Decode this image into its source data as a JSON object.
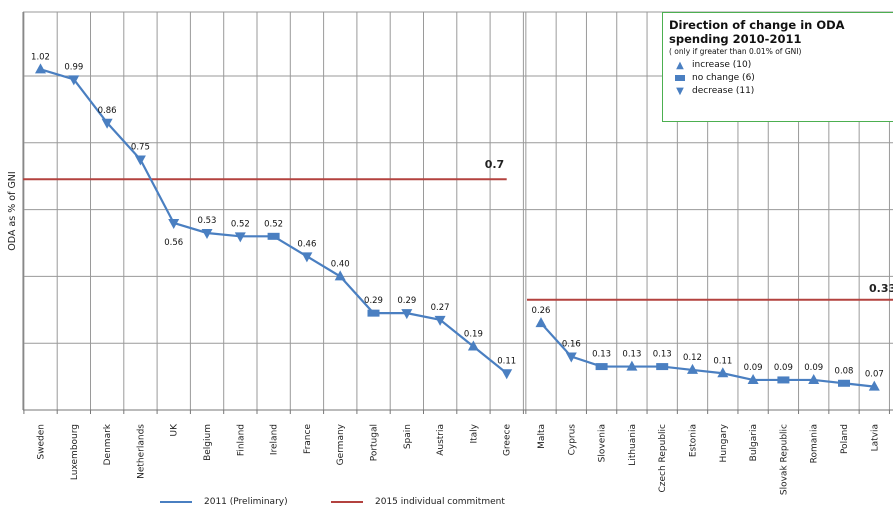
{
  "chart_data": {
    "type": "line",
    "ylabel": "ODA as % of GNI",
    "ylim": [
      0,
      1.1
    ],
    "grid": true,
    "series": [
      {
        "name": "2011 (Preliminary)",
        "color": "#4a7fc1",
        "groups": [
          {
            "points": [
              {
                "x": "Sweden",
                "y": 1.02,
                "label": "1.02",
                "change": "increase"
              },
              {
                "x": "Luxembourg",
                "y": 0.99,
                "label": "0.99",
                "change": "decrease"
              },
              {
                "x": "Denmark",
                "y": 0.86,
                "label": "0.86",
                "change": "decrease"
              },
              {
                "x": "Netherlands",
                "y": 0.75,
                "label": "0.75",
                "change": "decrease"
              },
              {
                "x": "UK",
                "y": 0.56,
                "label": "0.56",
                "change": "decrease"
              },
              {
                "x": "Belgium",
                "y": 0.53,
                "label": "0.53",
                "change": "decrease"
              },
              {
                "x": "Finland",
                "y": 0.52,
                "label": "0.52",
                "change": "decrease"
              },
              {
                "x": "Ireland",
                "y": 0.52,
                "label": "0.52",
                "change": "no change"
              },
              {
                "x": "France",
                "y": 0.46,
                "label": "0.46",
                "change": "decrease"
              },
              {
                "x": "Germany",
                "y": 0.4,
                "label": "0.40",
                "change": "increase"
              },
              {
                "x": "Portugal",
                "y": 0.29,
                "label": "0.29",
                "change": "no change"
              },
              {
                "x": "Spain",
                "y": 0.29,
                "label": "0.29",
                "change": "decrease"
              },
              {
                "x": "Austria",
                "y": 0.27,
                "label": "0.27",
                "change": "decrease"
              },
              {
                "x": "Italy",
                "y": 0.19,
                "label": "0.19",
                "change": "increase"
              },
              {
                "x": "Greece",
                "y": 0.11,
                "label": "0.11",
                "change": "decrease"
              }
            ]
          },
          {
            "points": [
              {
                "x": "Malta",
                "y": 0.26,
                "label": "0.26",
                "change": "increase"
              },
              {
                "x": "Cyprus",
                "y": 0.16,
                "label": "0.16",
                "change": "decrease"
              },
              {
                "x": "Slovenia",
                "y": 0.13,
                "label": "0.13",
                "change": "no change"
              },
              {
                "x": "Lithuania",
                "y": 0.13,
                "label": "0.13",
                "change": "increase"
              },
              {
                "x": "Czech Republic",
                "y": 0.13,
                "label": "0.13",
                "change": "no change"
              },
              {
                "x": "Estonia",
                "y": 0.12,
                "label": "0.12",
                "change": "increase"
              },
              {
                "x": "Hungary",
                "y": 0.11,
                "label": "0.11",
                "change": "increase"
              },
              {
                "x": "Bulgaria",
                "y": 0.09,
                "label": "0.09",
                "change": "increase"
              },
              {
                "x": "Slovak Republic",
                "y": 0.09,
                "label": "0.09",
                "change": "no change"
              },
              {
                "x": "Romania",
                "y": 0.09,
                "label": "0.09",
                "change": "increase"
              },
              {
                "x": "Poland",
                "y": 0.08,
                "label": "0.08",
                "change": "no change"
              },
              {
                "x": "Latvia",
                "y": 0.07,
                "label": "0.07",
                "change": "increase"
              }
            ]
          }
        ]
      },
      {
        "name": "2015 individual commitment",
        "color": "#b3423f",
        "segments": [
          {
            "from": "Sweden",
            "to": "Greece",
            "y": 0.7,
            "label": "0.7"
          },
          {
            "from": "Malta",
            "to": "Latvia",
            "y": 0.33,
            "label": "0.33"
          }
        ]
      }
    ]
  },
  "legend": {
    "title": "Direction of change in ODA spending 2010-2011",
    "note": "( only if greater than 0.01% of GNI)",
    "items": [
      {
        "label": "increase (10)",
        "icon": "triangle-up-icon"
      },
      {
        "label": "no change (6)",
        "icon": "square-icon"
      },
      {
        "label": "decrease (11)",
        "icon": "triangle-down-icon"
      }
    ]
  },
  "bottom_legend": {
    "series_2011": "2011 (Preliminary)",
    "series_2015": "2015 individual commitment"
  }
}
